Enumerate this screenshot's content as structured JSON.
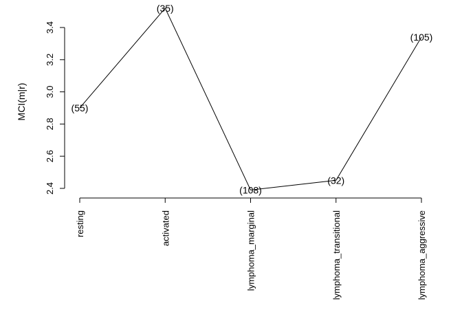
{
  "chart_data": {
    "type": "line",
    "ylabel": "MCI(m|r)",
    "categories": [
      "resting",
      "activated",
      "lymphoma_marginal",
      "lymphoma_transitional",
      "lymphoma_aggressive"
    ],
    "values": [
      2.9,
      3.52,
      2.39,
      2.45,
      3.34
    ],
    "point_labels": [
      "(55)",
      "(35)",
      "(108)",
      "(32)",
      "(105)"
    ],
    "y_ticks": [
      "2.4",
      "2.6",
      "2.8",
      "3.0",
      "3.2",
      "3.4"
    ],
    "ylim": [
      2.4,
      3.4
    ]
  }
}
